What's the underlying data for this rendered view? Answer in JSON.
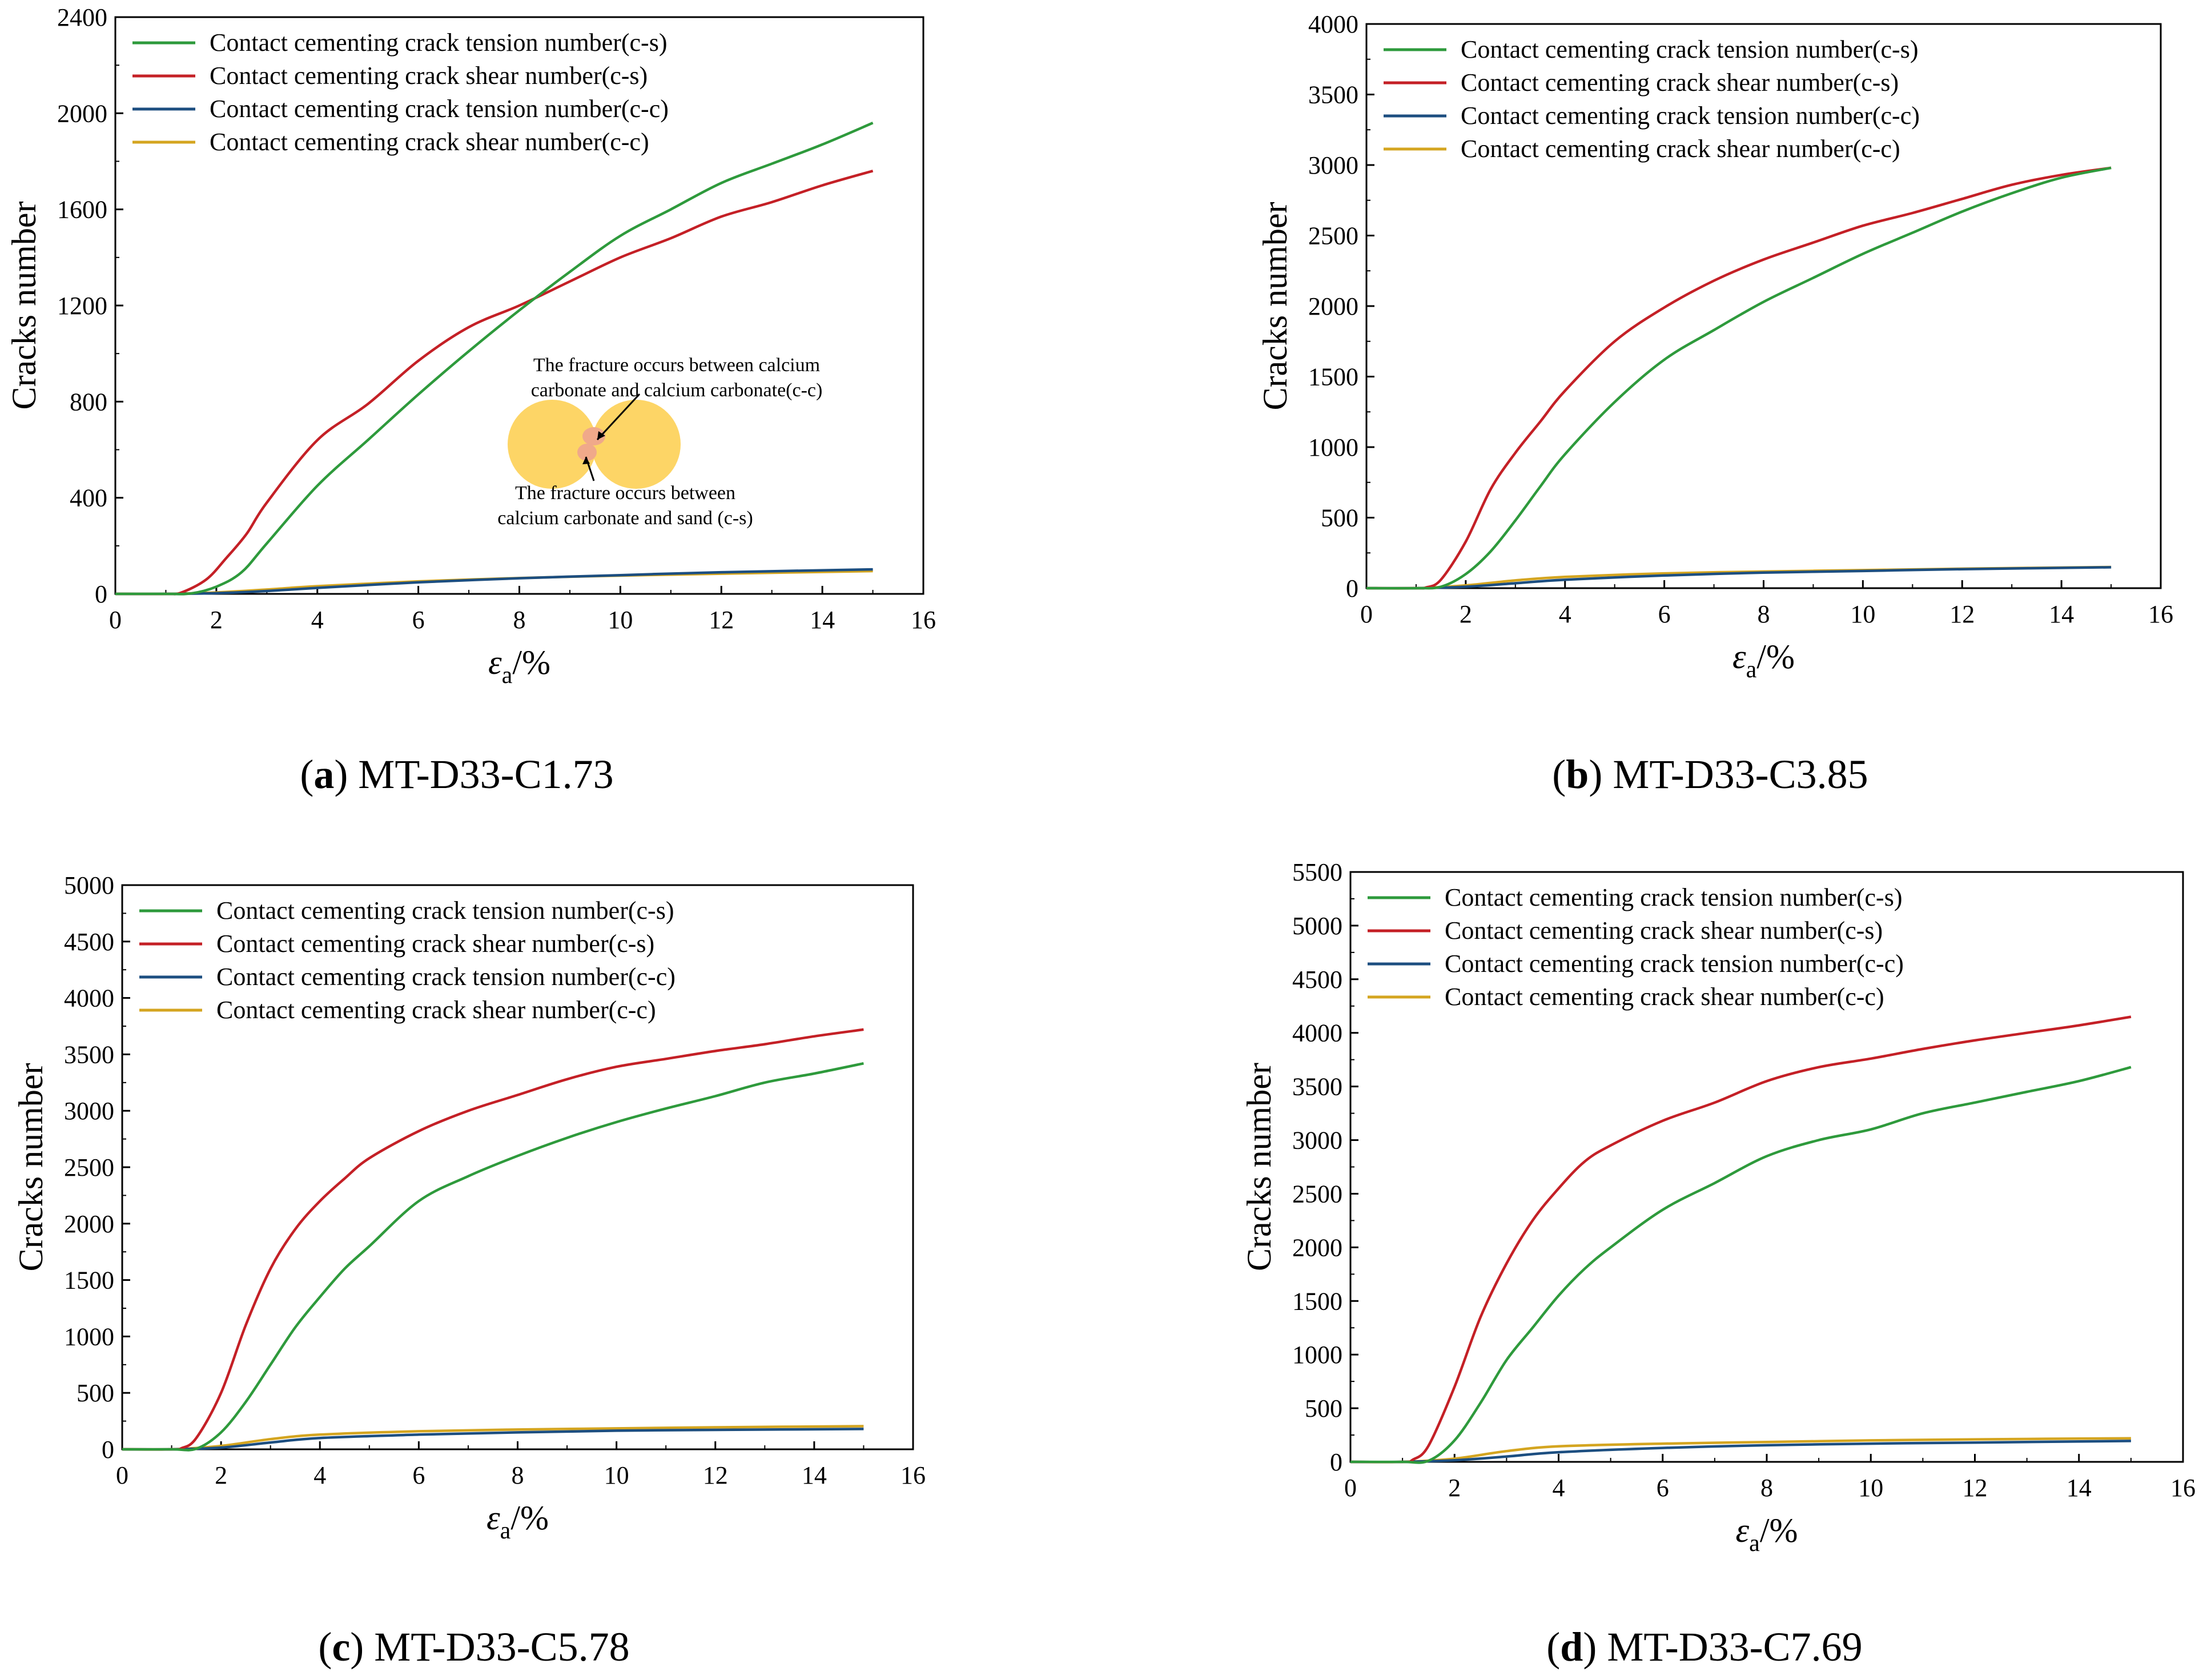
{
  "figure": {
    "panels": [
      {
        "letter": "a",
        "caption": "MT-D33-C1.73"
      },
      {
        "letter": "b",
        "caption": "MT-D33-C3.85"
      },
      {
        "letter": "c",
        "caption": "MT-D33-C5.78"
      },
      {
        "letter": "d",
        "caption": "MT-D33-C7.69"
      }
    ],
    "inset": {
      "label_top_line1": "The fracture occurs between calcium",
      "label_top_line2": "carbonate and calcium carbonate(c-c)",
      "label_bottom_line1": "The fracture occurs between",
      "label_bottom_line2": "calcium carbonate and sand (c-s)"
    }
  },
  "colors": {
    "tension_cs": "#2e9a3c",
    "shear_cs": "#c42026",
    "tension_cc": "#1c4e80",
    "shear_cc": "#d4a520",
    "grain": "#fdd566",
    "contact": "#f0a98a"
  },
  "chart_data": [
    {
      "type": "line",
      "xlabel": "εa/%",
      "ylabel": "Cracks number",
      "xlim": [
        0,
        16
      ],
      "ylim": [
        0,
        2400
      ],
      "xticks": [
        0,
        2,
        4,
        6,
        8,
        10,
        12,
        14,
        16
      ],
      "yticks": [
        0,
        400,
        800,
        1200,
        1600,
        2000,
        2400
      ],
      "legend_position": "top-left",
      "series": [
        {
          "name": "Contact cementing crack tension number(c-s)",
          "color": "#2e9a3c",
          "x": [
            0,
            1,
            1.5,
            2,
            2.5,
            3,
            4,
            5,
            6,
            7,
            8,
            9,
            10,
            11,
            12,
            13,
            14,
            15
          ],
          "y": [
            0,
            0,
            2,
            30,
            90,
            210,
            450,
            640,
            830,
            1010,
            1180,
            1340,
            1490,
            1600,
            1710,
            1790,
            1870,
            1960
          ]
        },
        {
          "name": "Contact cementing crack shear number(c-s)",
          "color": "#c42026",
          "x": [
            0,
            1,
            1.3,
            1.8,
            2.2,
            2.6,
            3,
            4,
            5,
            6,
            7,
            8,
            9,
            10,
            11,
            12,
            13,
            14,
            15
          ],
          "y": [
            0,
            0,
            5,
            60,
            150,
            250,
            380,
            640,
            790,
            970,
            1110,
            1200,
            1300,
            1400,
            1480,
            1570,
            1630,
            1700,
            1760
          ]
        },
        {
          "name": "Contact cementing crack tension number(c-c)",
          "color": "#1c4e80",
          "x": [
            0,
            1,
            2,
            3,
            4,
            6,
            8,
            10,
            12,
            15
          ],
          "y": [
            0,
            0,
            3,
            12,
            25,
            48,
            65,
            78,
            90,
            102
          ]
        },
        {
          "name": "Contact cementing crack shear number(c-c)",
          "color": "#d4a520",
          "x": [
            0,
            1,
            2,
            3,
            4,
            6,
            8,
            10,
            12,
            15
          ],
          "y": [
            0,
            0,
            6,
            18,
            32,
            52,
            66,
            76,
            84,
            95
          ]
        }
      ]
    },
    {
      "type": "line",
      "xlabel": "εa/%",
      "ylabel": "Cracks number",
      "xlim": [
        0,
        16
      ],
      "ylim": [
        0,
        4000
      ],
      "xticks": [
        0,
        2,
        4,
        6,
        8,
        10,
        12,
        14,
        16
      ],
      "yticks": [
        0,
        500,
        1000,
        1500,
        2000,
        2500,
        3000,
        3500,
        4000
      ],
      "legend_position": "top-left",
      "series": [
        {
          "name": "Contact cementing crack tension number(c-s)",
          "color": "#2e9a3c",
          "x": [
            0,
            1,
            1.5,
            2,
            2.5,
            3,
            3.5,
            4,
            5,
            6,
            7,
            8,
            9,
            10,
            11,
            12,
            13,
            14,
            15
          ],
          "y": [
            0,
            0,
            10,
            100,
            260,
            480,
            720,
            950,
            1320,
            1620,
            1830,
            2030,
            2200,
            2370,
            2520,
            2670,
            2800,
            2910,
            2980
          ]
        },
        {
          "name": "Contact cementing crack shear number(c-s)",
          "color": "#c42026",
          "x": [
            0,
            1,
            1.2,
            1.5,
            2,
            2.5,
            3,
            3.5,
            4,
            5,
            6,
            7,
            8,
            9,
            10,
            11,
            12,
            13,
            14,
            15
          ],
          "y": [
            0,
            0,
            5,
            60,
            330,
            700,
            960,
            1180,
            1400,
            1750,
            1990,
            2180,
            2330,
            2450,
            2570,
            2660,
            2760,
            2860,
            2930,
            2980
          ]
        },
        {
          "name": "Contact cementing crack tension number(c-c)",
          "color": "#1c4e80",
          "x": [
            0,
            1,
            2,
            3,
            4,
            6,
            8,
            10,
            12,
            15
          ],
          "y": [
            0,
            0,
            10,
            35,
            60,
            90,
            110,
            122,
            135,
            148
          ]
        },
        {
          "name": "Contact cementing crack shear number(c-c)",
          "color": "#d4a520",
          "x": [
            0,
            1,
            2,
            3,
            4,
            6,
            8,
            10,
            12,
            15
          ],
          "y": [
            0,
            0,
            20,
            55,
            80,
            105,
            118,
            128,
            138,
            150
          ]
        }
      ]
    },
    {
      "type": "line",
      "xlabel": "εa/%",
      "ylabel": "Cracks number",
      "xlim": [
        0,
        16
      ],
      "ylim": [
        0,
        5000
      ],
      "xticks": [
        0,
        2,
        4,
        6,
        8,
        10,
        12,
        14,
        16
      ],
      "yticks": [
        0,
        500,
        1000,
        1500,
        2000,
        2500,
        3000,
        3500,
        4000,
        4500,
        5000
      ],
      "legend_position": "top-left",
      "series": [
        {
          "name": "Contact cementing crack tension number(c-s)",
          "color": "#2e9a3c",
          "x": [
            0,
            1,
            1.5,
            2,
            2.5,
            3,
            3.5,
            4,
            4.5,
            5,
            6,
            7,
            8,
            9,
            10,
            11,
            12,
            13,
            14,
            15
          ],
          "y": [
            0,
            0,
            5,
            150,
            420,
            750,
            1080,
            1350,
            1600,
            1800,
            2200,
            2420,
            2600,
            2760,
            2900,
            3020,
            3130,
            3250,
            3330,
            3420
          ]
        },
        {
          "name": "Contact cementing crack shear number(c-s)",
          "color": "#c42026",
          "x": [
            0,
            1,
            1.2,
            1.5,
            2,
            2.5,
            3,
            3.5,
            4,
            4.5,
            5,
            6,
            7,
            8,
            9,
            10,
            11,
            12,
            13,
            14,
            15
          ],
          "y": [
            0,
            0,
            10,
            100,
            500,
            1100,
            1600,
            1950,
            2200,
            2400,
            2580,
            2820,
            3000,
            3140,
            3280,
            3390,
            3460,
            3530,
            3590,
            3660,
            3720
          ]
        },
        {
          "name": "Contact cementing crack tension number(c-c)",
          "color": "#1c4e80",
          "x": [
            0,
            1,
            2,
            3,
            4,
            6,
            8,
            10,
            12,
            15
          ],
          "y": [
            0,
            0,
            15,
            60,
            100,
            130,
            150,
            165,
            172,
            180
          ]
        },
        {
          "name": "Contact cementing crack shear number(c-c)",
          "color": "#d4a520",
          "x": [
            0,
            1,
            2,
            3,
            4,
            6,
            8,
            10,
            12,
            15
          ],
          "y": [
            0,
            0,
            30,
            90,
            130,
            160,
            175,
            185,
            195,
            205
          ]
        }
      ]
    },
    {
      "type": "line",
      "xlabel": "εa/%",
      "ylabel": "Cracks number",
      "xlim": [
        0,
        16
      ],
      "ylim": [
        0,
        5500
      ],
      "xticks": [
        0,
        2,
        4,
        6,
        8,
        10,
        12,
        14,
        16
      ],
      "yticks": [
        0,
        500,
        1000,
        1500,
        2000,
        2500,
        3000,
        3500,
        4000,
        4500,
        5000,
        5500
      ],
      "legend_position": "top-left",
      "series": [
        {
          "name": "Contact cementing crack tension number(c-s)",
          "color": "#2e9a3c",
          "x": [
            0,
            1,
            1.5,
            2,
            2.5,
            3,
            3.5,
            4,
            4.5,
            5,
            6,
            7,
            8,
            9,
            10,
            11,
            12,
            13,
            14,
            15
          ],
          "y": [
            0,
            0,
            10,
            200,
            550,
            950,
            1250,
            1550,
            1800,
            2000,
            2350,
            2600,
            2850,
            3000,
            3100,
            3250,
            3350,
            3450,
            3550,
            3680
          ]
        },
        {
          "name": "Contact cementing crack shear number(c-s)",
          "color": "#c42026",
          "x": [
            0,
            1,
            1.2,
            1.5,
            2,
            2.5,
            3,
            3.5,
            4,
            4.5,
            5,
            6,
            7,
            8,
            9,
            10,
            11,
            12,
            13,
            14,
            15
          ],
          "y": [
            0,
            0,
            20,
            150,
            700,
            1350,
            1850,
            2250,
            2550,
            2800,
            2950,
            3180,
            3350,
            3550,
            3680,
            3760,
            3850,
            3930,
            4000,
            4070,
            4150
          ]
        },
        {
          "name": "Contact cementing crack tension number(c-c)",
          "color": "#1c4e80",
          "x": [
            0,
            1,
            2,
            3,
            4,
            6,
            8,
            10,
            12,
            15
          ],
          "y": [
            0,
            0,
            15,
            50,
            90,
            130,
            155,
            170,
            180,
            195
          ]
        },
        {
          "name": "Contact cementing crack shear number(c-c)",
          "color": "#d4a520",
          "x": [
            0,
            1,
            2,
            3,
            4,
            6,
            8,
            10,
            12,
            15
          ],
          "y": [
            0,
            0,
            30,
            100,
            145,
            170,
            185,
            200,
            210,
            220
          ]
        }
      ]
    }
  ]
}
